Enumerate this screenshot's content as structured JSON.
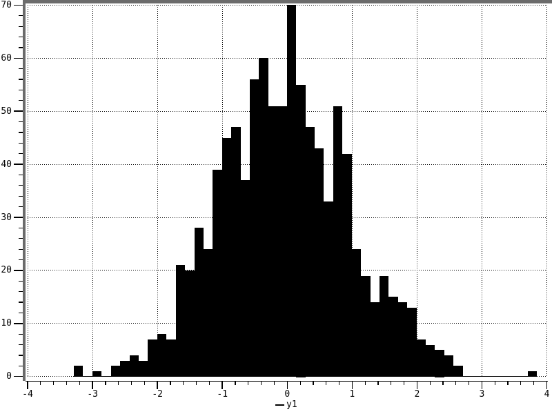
{
  "figure": {
    "background": "#ffffff",
    "frame_color": "#6b6b6b"
  },
  "chart_data": {
    "type": "histogram",
    "title": "",
    "xlabel": "",
    "ylabel": "",
    "legend_label": "y1",
    "legend_position": "bottom-center",
    "grid": "dotted",
    "bar_color": "#000000",
    "xlim": [
      -4,
      4
    ],
    "ylim": [
      0,
      70
    ],
    "x_tick_labels": [
      "-4",
      "-3",
      "-2",
      "-1",
      "0",
      "1",
      "2",
      "3",
      "4"
    ],
    "y_tick_labels": [
      "0",
      "10",
      "20",
      "30",
      "40",
      "50",
      "60",
      "70"
    ],
    "x_minor_tick_step": 0.2,
    "y_minor_tick_step": 2,
    "n_samples": 1000,
    "n_bins": 50,
    "bin_start": -3.288,
    "bin_width": 0.1427,
    "counts": [
      2,
      0,
      1,
      0,
      2,
      3,
      4,
      3,
      7,
      8,
      7,
      21,
      20,
      28,
      24,
      39,
      45,
      47,
      37,
      56,
      60,
      51,
      51,
      70,
      55,
      47,
      43,
      33,
      51,
      42,
      24,
      19,
      14,
      19,
      15,
      14,
      13,
      7,
      6,
      5,
      4,
      2,
      0,
      0,
      0,
      0,
      0,
      0,
      0,
      1
    ]
  }
}
